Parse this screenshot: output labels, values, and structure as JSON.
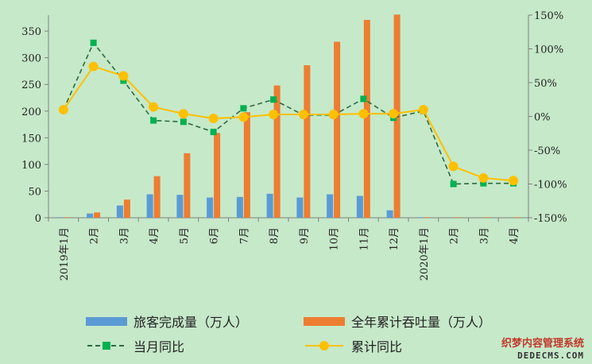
{
  "chart_data": {
    "type": "bar",
    "categories": [
      "2019年1月",
      "2月",
      "3月",
      "4月",
      "5月",
      "6月",
      "7月",
      "8月",
      "9月",
      "10月",
      "11月",
      "12月",
      "2020年1月",
      "2月",
      "3月",
      "4月"
    ],
    "series": [
      {
        "name": "旅客完成量（万人）",
        "kind": "bar",
        "axis": "left",
        "color": "#5b9bd5",
        "values": [
          1,
          8,
          23,
          44,
          43,
          38,
          39,
          45,
          38,
          44,
          41,
          14,
          1,
          0,
          0,
          0
        ]
      },
      {
        "name": "全年累计吞吐量（万人）",
        "kind": "bar",
        "axis": "left",
        "color": "#ed7d31",
        "values": [
          1,
          10,
          34,
          78,
          121,
          159,
          198,
          248,
          286,
          330,
          371,
          381,
          1,
          1,
          1,
          1
        ]
      },
      {
        "name": "当月同比",
        "kind": "line",
        "axis": "right",
        "color": "#00b050",
        "dash": true,
        "values": [
          10,
          109,
          53,
          -6,
          -8,
          -23,
          12,
          25,
          2,
          2,
          26,
          -2,
          8,
          -100,
          -99,
          -99
        ]
      },
      {
        "name": "累计同比",
        "kind": "line",
        "axis": "right",
        "color": "#ffc000",
        "values": [
          10,
          74,
          60,
          14,
          4,
          -3,
          -1,
          3,
          3,
          3,
          4,
          4,
          10,
          -74,
          -91,
          -95
        ]
      }
    ],
    "y_left": {
      "min": 0,
      "max": 380,
      "ticks": [
        "0",
        "50",
        "100",
        "150",
        "200",
        "250",
        "300",
        "350"
      ]
    },
    "y_right": {
      "min": -150,
      "max": 150,
      "ticks": [
        "150%",
        "100%",
        "50%",
        "0%",
        "-50%",
        "-100%",
        "-150%"
      ]
    },
    "gridlines": false,
    "legend_position": "bottom"
  },
  "legend": [
    {
      "label": "旅客完成量（万人）",
      "color": "#5b9bd5",
      "type": "bar"
    },
    {
      "label": "全年累计吞吐量（万人）",
      "color": "#ed7d31",
      "type": "bar"
    },
    {
      "label": "当月同比",
      "color": "#00b050",
      "type": "dash-square"
    },
    {
      "label": "累计同比",
      "color": "#ffc000",
      "type": "line-circle"
    }
  ],
  "watermark": {
    "line1": "织梦内容管理系统",
    "line2": "DEDECMS.COM"
  }
}
